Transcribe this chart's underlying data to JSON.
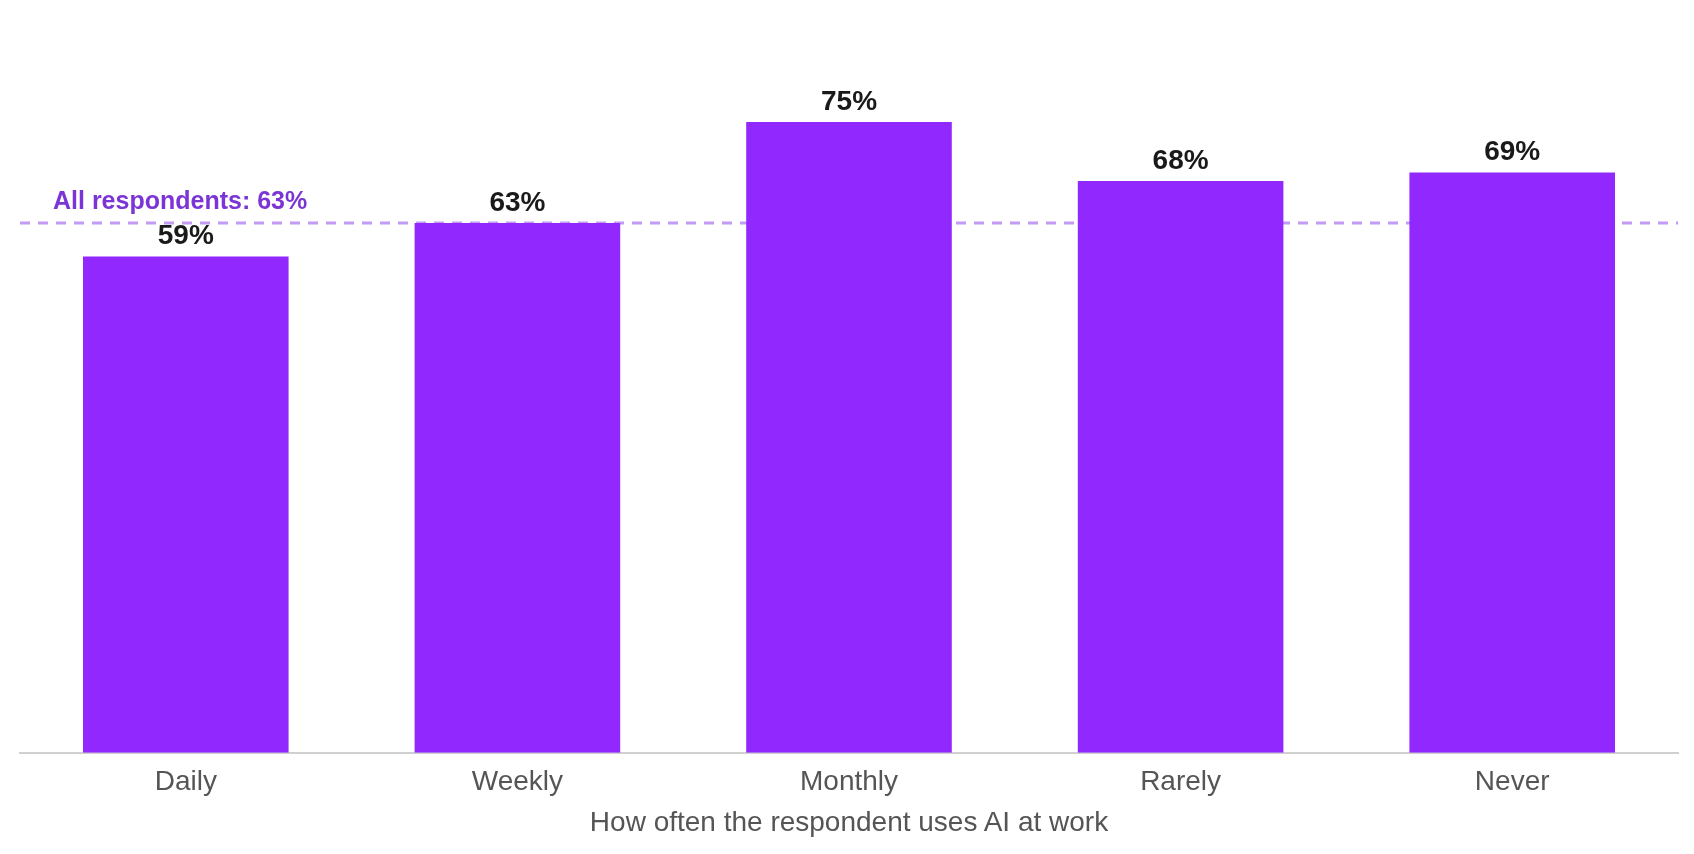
{
  "chart_data": {
    "type": "bar",
    "xlabel": "How often the respondent uses AI at work",
    "categories": [
      "Daily",
      "Weekly",
      "Monthly",
      "Rarely",
      "Never"
    ],
    "values": [
      59,
      63,
      75,
      68,
      69
    ],
    "color": "#9129ff",
    "value_labels": [
      "59%",
      "63%",
      "75%",
      "68%",
      "69%"
    ],
    "ref_lines": [
      {
        "axis": "y",
        "value": 63,
        "label": "All respondents: 63%",
        "color": "#c39bf5",
        "line_style": "dashed"
      }
    ],
    "grid": false,
    "legend": false,
    "tick_labels": "x"
  }
}
